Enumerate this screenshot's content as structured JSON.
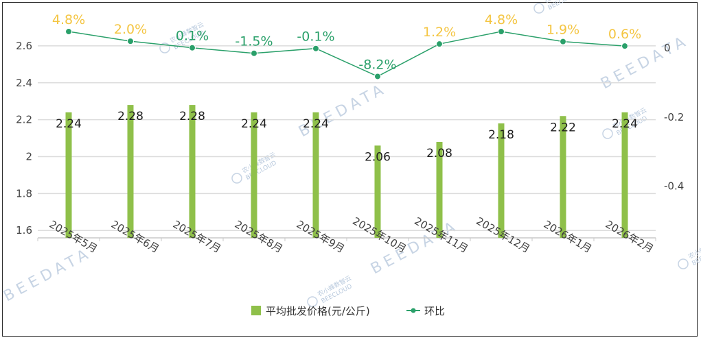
{
  "chart_data": {
    "type": "bar+line",
    "categories": [
      "2025年5月",
      "2025年6月",
      "2025年7月",
      "2025年8月",
      "2025年9月",
      "2025年10月",
      "2025年11月",
      "2025年12月",
      "2026年1月",
      "2026年2月"
    ],
    "series": [
      {
        "name": "平均批发价格(元/公斤)",
        "type": "bar",
        "axis": "left",
        "values": [
          2.24,
          2.28,
          2.28,
          2.24,
          2.24,
          2.06,
          2.08,
          2.18,
          2.22,
          2.24
        ],
        "labels": [
          "2.24",
          "2.28",
          "2.28",
          "2.24",
          "2.24",
          "2.06",
          "2.08",
          "2.18",
          "2.22",
          "2.24"
        ]
      },
      {
        "name": "环比",
        "type": "line",
        "axis": "right",
        "values": [
          0.048,
          0.02,
          0.001,
          -0.015,
          -0.001,
          -0.082,
          0.012,
          0.048,
          0.019,
          0.006
        ],
        "labels": [
          "4.8%",
          "2.0%",
          "0.1%",
          "-1.5%",
          "-0.1%",
          "-8.2%",
          "1.2%",
          "4.8%",
          "1.9%",
          "0.6%"
        ]
      }
    ],
    "left_axis": {
      "ylim": [
        1.56,
        2.7
      ],
      "ticks": [
        "1.6",
        "1.8",
        "2",
        "2.2",
        "2.4",
        "2.6"
      ],
      "tick_values": [
        1.6,
        1.8,
        2.0,
        2.2,
        2.4,
        2.6
      ]
    },
    "right_axis": {
      "ylim": [
        -0.55,
        0.06
      ],
      "ticks": [
        "0",
        "-0.2",
        "-0.4"
      ],
      "tick_values": [
        0,
        -0.2,
        -0.4
      ]
    },
    "grid": true,
    "legend_position": "bottom-center",
    "colors": {
      "bar": "#8fc04a",
      "line": "#2aa06a",
      "label_positive": "#f4c542",
      "label_negative": "#2aa06a",
      "grid": "#dcdcdc",
      "watermark": "#c7d4e4"
    }
  },
  "watermark": {
    "text": "BEEDATA",
    "cn": "农小蜂数智云",
    "en": "BEECLOUD"
  }
}
